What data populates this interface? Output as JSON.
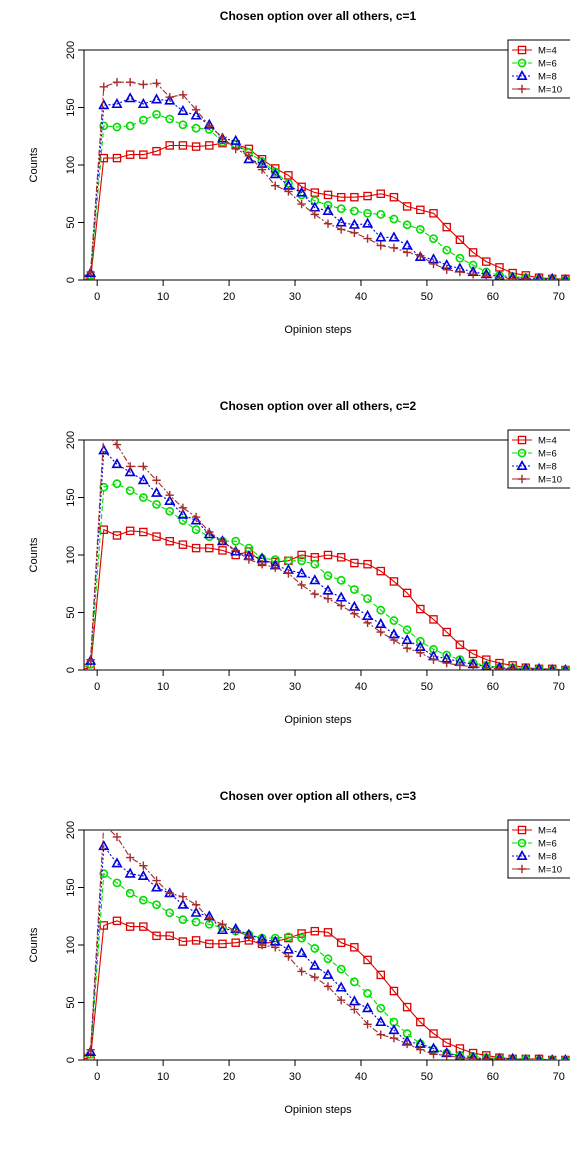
{
  "chart_data": [
    {
      "type": "line",
      "title": "Chosen option over all others, c=1",
      "xlabel": "Opinion steps",
      "ylabel": "Counts",
      "xlim": [
        -2,
        72
      ],
      "ylim": [
        0,
        200
      ],
      "xticks": [
        0,
        10,
        20,
        30,
        40,
        50,
        60,
        70
      ],
      "yticks": [
        0,
        50,
        100,
        150,
        200
      ],
      "grid": false,
      "legend": "top-right",
      "x": [
        -3,
        -1,
        1,
        3,
        5,
        7,
        9,
        11,
        13,
        15,
        17,
        19,
        21,
        23,
        25,
        27,
        29,
        31,
        33,
        35,
        37,
        39,
        41,
        43,
        45,
        47,
        49,
        51,
        53,
        55,
        57,
        59,
        61,
        63,
        65,
        67,
        69,
        71,
        73
      ],
      "series": [
        {
          "name": "M=4",
          "color": "#dd0000",
          "marker": "square",
          "dash": "",
          "values": [
            0,
            1,
            106,
            106,
            109,
            109,
            112,
            117,
            117,
            116,
            117,
            119,
            118,
            114,
            105,
            97,
            91,
            81,
            76,
            74,
            72,
            72,
            73,
            75,
            72,
            64,
            61,
            58,
            46,
            35,
            24,
            16,
            11,
            6,
            4,
            2,
            1,
            1,
            0
          ]
        },
        {
          "name": "M=6",
          "color": "#00dd00",
          "marker": "circle",
          "dash": "5,3",
          "values": [
            0,
            4,
            134,
            133,
            134,
            139,
            144,
            140,
            135,
            132,
            131,
            120,
            118,
            111,
            103,
            94,
            84,
            74,
            69,
            65,
            62,
            60,
            58,
            57,
            53,
            48,
            44,
            36,
            26,
            19,
            13,
            7,
            4,
            3,
            2,
            1,
            1,
            0,
            0
          ]
        },
        {
          "name": "M=8",
          "color": "#0000dd",
          "marker": "triangle",
          "dash": "2,2",
          "values": [
            0,
            6,
            152,
            153,
            158,
            153,
            157,
            156,
            147,
            143,
            135,
            123,
            121,
            105,
            101,
            92,
            82,
            76,
            63,
            60,
            50,
            48,
            49,
            37,
            37,
            30,
            20,
            18,
            13,
            10,
            7,
            5,
            3,
            2,
            1,
            1,
            1,
            0,
            0
          ]
        },
        {
          "name": "M=10",
          "color": "#a52a2a",
          "marker": "plus",
          "dash": "6,2,2,2",
          "values": [
            0,
            7,
            168,
            172,
            172,
            170,
            171,
            159,
            161,
            148,
            134,
            124,
            114,
            108,
            96,
            82,
            77,
            66,
            57,
            49,
            44,
            41,
            36,
            30,
            28,
            24,
            21,
            14,
            9,
            7,
            5,
            3,
            2,
            1,
            1,
            0,
            0,
            0,
            0
          ]
        }
      ]
    },
    {
      "type": "line",
      "title": "Chosen option over all others, c=2",
      "xlabel": "Opinion steps",
      "ylabel": "Counts",
      "xlim": [
        -2,
        72
      ],
      "ylim": [
        0,
        200
      ],
      "xticks": [
        0,
        10,
        20,
        30,
        40,
        50,
        60,
        70
      ],
      "yticks": [
        0,
        50,
        100,
        150,
        200
      ],
      "grid": false,
      "legend": "top-right",
      "x": [
        -3,
        -1,
        1,
        3,
        5,
        7,
        9,
        11,
        13,
        15,
        17,
        19,
        21,
        23,
        25,
        27,
        29,
        31,
        33,
        35,
        37,
        39,
        41,
        43,
        45,
        47,
        49,
        51,
        53,
        55,
        57,
        59,
        61,
        63,
        65,
        67,
        69,
        71,
        73
      ],
      "series": [
        {
          "name": "M=4",
          "color": "#dd0000",
          "marker": "square",
          "dash": "",
          "values": [
            0,
            2,
            122,
            117,
            121,
            120,
            116,
            112,
            109,
            106,
            106,
            104,
            100,
            103,
            94,
            94,
            95,
            100,
            98,
            100,
            98,
            93,
            92,
            86,
            77,
            67,
            53,
            44,
            33,
            22,
            14,
            9,
            6,
            4,
            2,
            1,
            1,
            0,
            0
          ]
        },
        {
          "name": "M=6",
          "color": "#00dd00",
          "marker": "circle",
          "dash": "5,3",
          "values": [
            0,
            5,
            159,
            162,
            156,
            150,
            144,
            138,
            130,
            122,
            116,
            112,
            112,
            106,
            97,
            96,
            95,
            95,
            92,
            82,
            78,
            70,
            62,
            52,
            43,
            35,
            25,
            18,
            13,
            9,
            6,
            4,
            2,
            2,
            1,
            1,
            0,
            0,
            0
          ]
        },
        {
          "name": "M=8",
          "color": "#0000dd",
          "marker": "triangle",
          "dash": "2,2",
          "values": [
            0,
            8,
            191,
            179,
            172,
            165,
            154,
            147,
            135,
            130,
            118,
            112,
            103,
            99,
            97,
            91,
            87,
            84,
            78,
            69,
            63,
            55,
            47,
            40,
            31,
            26,
            20,
            12,
            10,
            7,
            5,
            3,
            2,
            1,
            1,
            1,
            0,
            0,
            0
          ]
        },
        {
          "name": "M=10",
          "color": "#a52a2a",
          "marker": "plus",
          "dash": "6,2,2,2",
          "values": [
            0,
            9,
            207,
            196,
            177,
            177,
            165,
            152,
            141,
            133,
            120,
            112,
            104,
            96,
            92,
            89,
            84,
            74,
            66,
            62,
            56,
            49,
            41,
            33,
            26,
            19,
            15,
            9,
            6,
            4,
            3,
            2,
            1,
            1,
            0,
            0,
            0,
            0,
            0
          ]
        }
      ]
    },
    {
      "type": "line",
      "title": "Chosen over option all others, c=3",
      "xlabel": "Opinion steps",
      "ylabel": "Counts",
      "xlim": [
        -2,
        72
      ],
      "ylim": [
        0,
        200
      ],
      "xticks": [
        0,
        10,
        20,
        30,
        40,
        50,
        60,
        70
      ],
      "yticks": [
        0,
        50,
        100,
        150,
        200
      ],
      "grid": false,
      "legend": "top-right",
      "x": [
        -3,
        -1,
        1,
        3,
        5,
        7,
        9,
        11,
        13,
        15,
        17,
        19,
        21,
        23,
        25,
        27,
        29,
        31,
        33,
        35,
        37,
        39,
        41,
        43,
        45,
        47,
        49,
        51,
        53,
        55,
        57,
        59,
        61,
        63,
        65,
        67,
        69,
        71,
        73
      ],
      "series": [
        {
          "name": "M=4",
          "color": "#dd0000",
          "marker": "square",
          "dash": "",
          "values": [
            0,
            2,
            117,
            121,
            116,
            116,
            108,
            108,
            103,
            104,
            101,
            101,
            102,
            104,
            101,
            103,
            106,
            110,
            112,
            111,
            102,
            98,
            87,
            74,
            60,
            46,
            33,
            23,
            15,
            10,
            6,
            4,
            2,
            1,
            1,
            1,
            0,
            0,
            0
          ]
        },
        {
          "name": "M=6",
          "color": "#00dd00",
          "marker": "circle",
          "dash": "5,3",
          "values": [
            0,
            5,
            162,
            154,
            145,
            139,
            135,
            128,
            122,
            120,
            118,
            115,
            112,
            109,
            106,
            106,
            107,
            106,
            97,
            88,
            79,
            68,
            58,
            45,
            33,
            23,
            14,
            9,
            6,
            4,
            3,
            2,
            1,
            1,
            1,
            0,
            0,
            0,
            0
          ]
        },
        {
          "name": "M=8",
          "color": "#0000dd",
          "marker": "triangle",
          "dash": "2,2",
          "values": [
            0,
            7,
            186,
            171,
            162,
            160,
            150,
            145,
            135,
            128,
            125,
            113,
            114,
            109,
            105,
            103,
            96,
            93,
            82,
            74,
            63,
            51,
            45,
            33,
            26,
            16,
            14,
            10,
            6,
            3,
            2,
            1,
            1,
            1,
            0,
            0,
            0,
            0,
            0
          ]
        },
        {
          "name": "M=10",
          "color": "#a52a2a",
          "marker": "plus",
          "dash": "6,2,2,2",
          "values": [
            0,
            9,
            205,
            194,
            176,
            169,
            156,
            145,
            142,
            135,
            123,
            118,
            112,
            108,
            100,
            98,
            90,
            77,
            72,
            64,
            52,
            44,
            31,
            22,
            19,
            14,
            9,
            5,
            4,
            2,
            1,
            1,
            1,
            0,
            0,
            0,
            0,
            0,
            0
          ]
        }
      ]
    }
  ]
}
